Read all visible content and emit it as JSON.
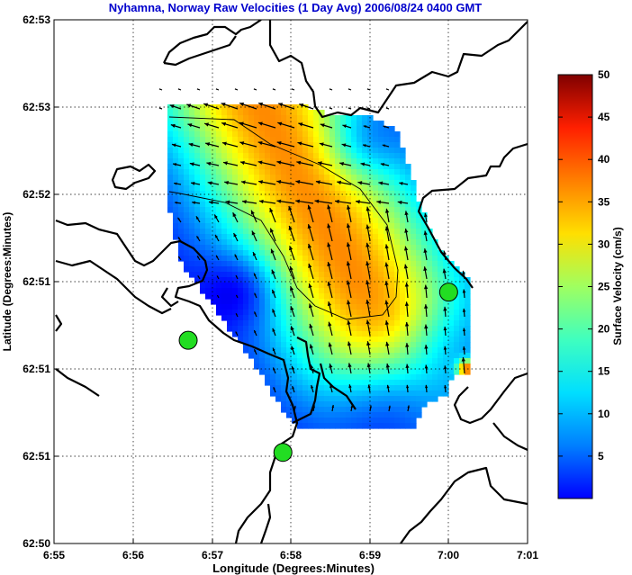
{
  "chart_data": {
    "type": "heatmap",
    "title": "Nyhamna, Norway Raw Velocities (1 Day Avg) 2006/08/24 0400 GMT",
    "xlabel": "Longitude (Degrees:Minutes)",
    "ylabel": "Latitude (Degrees:Minutes)",
    "colorbar_label": "Surface Velocity (cm/s)",
    "x_ticks": [
      "6:55",
      "6:56",
      "6:57",
      "6:58",
      "6:59",
      "7:00",
      "7:01"
    ],
    "y_ticks": [
      "62:50",
      "62:51",
      "62:51",
      "62:51",
      "62:52",
      "62:53",
      "62:53"
    ],
    "colorbar_ticks": [
      "5",
      "10",
      "15",
      "20",
      "25",
      "30",
      "35",
      "40",
      "45",
      "50"
    ],
    "clim": [
      0,
      50
    ],
    "grid": true,
    "colormap": "jet",
    "title_color": "#0000cc",
    "stations_color": "#22dd22",
    "stations": [
      {
        "lon": 6.945,
        "lat": 62.8527
      },
      {
        "lon": 6.965,
        "lat": 62.842
      },
      {
        "lon": 7.0,
        "lat": 62.8573
      }
    ],
    "contour_levels_cm_s": [
      30
    ]
  }
}
